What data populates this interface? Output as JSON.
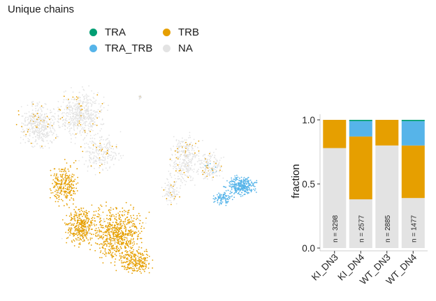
{
  "title": "Unique chains",
  "legend": {
    "items": [
      {
        "label": "TRA",
        "color": "#009E73"
      },
      {
        "label": "TRB",
        "color": "#E69F00"
      },
      {
        "label": "TRA_TRB",
        "color": "#56B4E9"
      },
      {
        "label": "NA",
        "color": "#E3E3E3"
      }
    ]
  },
  "chart_data": [
    {
      "type": "scatter",
      "categories": [
        "TRA",
        "TRA_TRB",
        "TRB",
        "NA"
      ],
      "colors": {
        "TRA": "#009E73",
        "TRA_TRB": "#56B4E9",
        "TRB": "#E69F00",
        "NA": "#E3E3E3"
      }
    },
    {
      "type": "bar",
      "stacked": true,
      "categories": [
        "KI_DN3",
        "KI_DN4",
        "WT_DN3",
        "WT_DN4"
      ],
      "series": [
        {
          "name": "NA",
          "values": [
            0.78,
            0.38,
            0.8,
            0.39
          ],
          "color": "#E3E3E3"
        },
        {
          "name": "TRB",
          "values": [
            0.22,
            0.49,
            0.2,
            0.41
          ],
          "color": "#E69F00"
        },
        {
          "name": "TRA_TRB",
          "values": [
            0.0,
            0.12,
            0.0,
            0.19
          ],
          "color": "#56B4E9"
        },
        {
          "name": "TRA",
          "values": [
            0.0,
            0.01,
            0.0,
            0.01
          ],
          "color": "#009E73"
        }
      ],
      "counts": [
        "n = 3298",
        "n = 2577",
        "n = 2885",
        "n = 1477"
      ],
      "ylabel": "fraction",
      "ylim": [
        0,
        1
      ],
      "yticks": [
        "0.0",
        "0.5",
        "1.0"
      ]
    }
  ]
}
